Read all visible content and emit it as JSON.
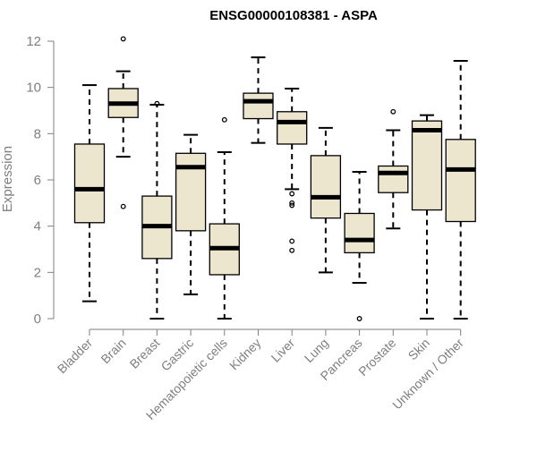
{
  "chart_data": {
    "type": "boxplot",
    "title": "ENSG00000108381 - ASPA",
    "xlabel": "",
    "ylabel": "Expression",
    "ylim": [
      0,
      12
    ],
    "yticks": [
      0,
      2,
      4,
      6,
      8,
      10,
      12
    ],
    "grid": false,
    "legend": "none",
    "box_fill": "#ede6cf",
    "box_stroke": "#000000",
    "series": [
      {
        "category": "Bladder",
        "whisker_low": 0.75,
        "q1": 4.15,
        "median": 5.6,
        "q3": 7.55,
        "whisker_high": 10.1,
        "outliers": []
      },
      {
        "category": "Brain",
        "whisker_low": 7.0,
        "q1": 8.7,
        "median": 9.3,
        "q3": 9.95,
        "whisker_high": 10.7,
        "outliers": [
          12.1,
          4.85
        ]
      },
      {
        "category": "Breast",
        "whisker_low": 0.0,
        "q1": 2.6,
        "median": 4.0,
        "q3": 5.3,
        "whisker_high": 9.25,
        "outliers": [
          9.3
        ]
      },
      {
        "category": "Gastric",
        "whisker_low": 1.05,
        "q1": 3.8,
        "median": 6.55,
        "q3": 7.15,
        "whisker_high": 7.95,
        "outliers": []
      },
      {
        "category": "Hematopoietic cells",
        "whisker_low": 0.0,
        "q1": 1.9,
        "median": 3.05,
        "q3": 4.1,
        "whisker_high": 7.2,
        "outliers": [
          8.6
        ]
      },
      {
        "category": "Kidney",
        "whisker_low": 7.6,
        "q1": 8.65,
        "median": 9.4,
        "q3": 9.75,
        "whisker_high": 11.3,
        "outliers": []
      },
      {
        "category": "Liver",
        "whisker_low": 5.6,
        "q1": 7.55,
        "median": 8.5,
        "q3": 8.95,
        "whisker_high": 9.95,
        "outliers": [
          5.4,
          5.0,
          4.9,
          3.35,
          2.95
        ]
      },
      {
        "category": "Lung",
        "whisker_low": 2.0,
        "q1": 4.35,
        "median": 5.25,
        "q3": 7.05,
        "whisker_high": 8.25,
        "outliers": []
      },
      {
        "category": "Pancreas",
        "whisker_low": 1.55,
        "q1": 2.85,
        "median": 3.4,
        "q3": 4.55,
        "whisker_high": 6.35,
        "outliers": [
          0.0
        ]
      },
      {
        "category": "Prostate",
        "whisker_low": 3.9,
        "q1": 5.45,
        "median": 6.3,
        "q3": 6.6,
        "whisker_high": 8.15,
        "outliers": [
          8.95
        ]
      },
      {
        "category": "Skin",
        "whisker_low": 0.0,
        "q1": 4.7,
        "median": 8.15,
        "q3": 8.55,
        "whisker_high": 8.8,
        "outliers": []
      },
      {
        "category": "Unknown / Other",
        "whisker_low": 0.0,
        "q1": 4.2,
        "median": 6.45,
        "q3": 7.75,
        "whisker_high": 11.15,
        "outliers": []
      }
    ]
  }
}
